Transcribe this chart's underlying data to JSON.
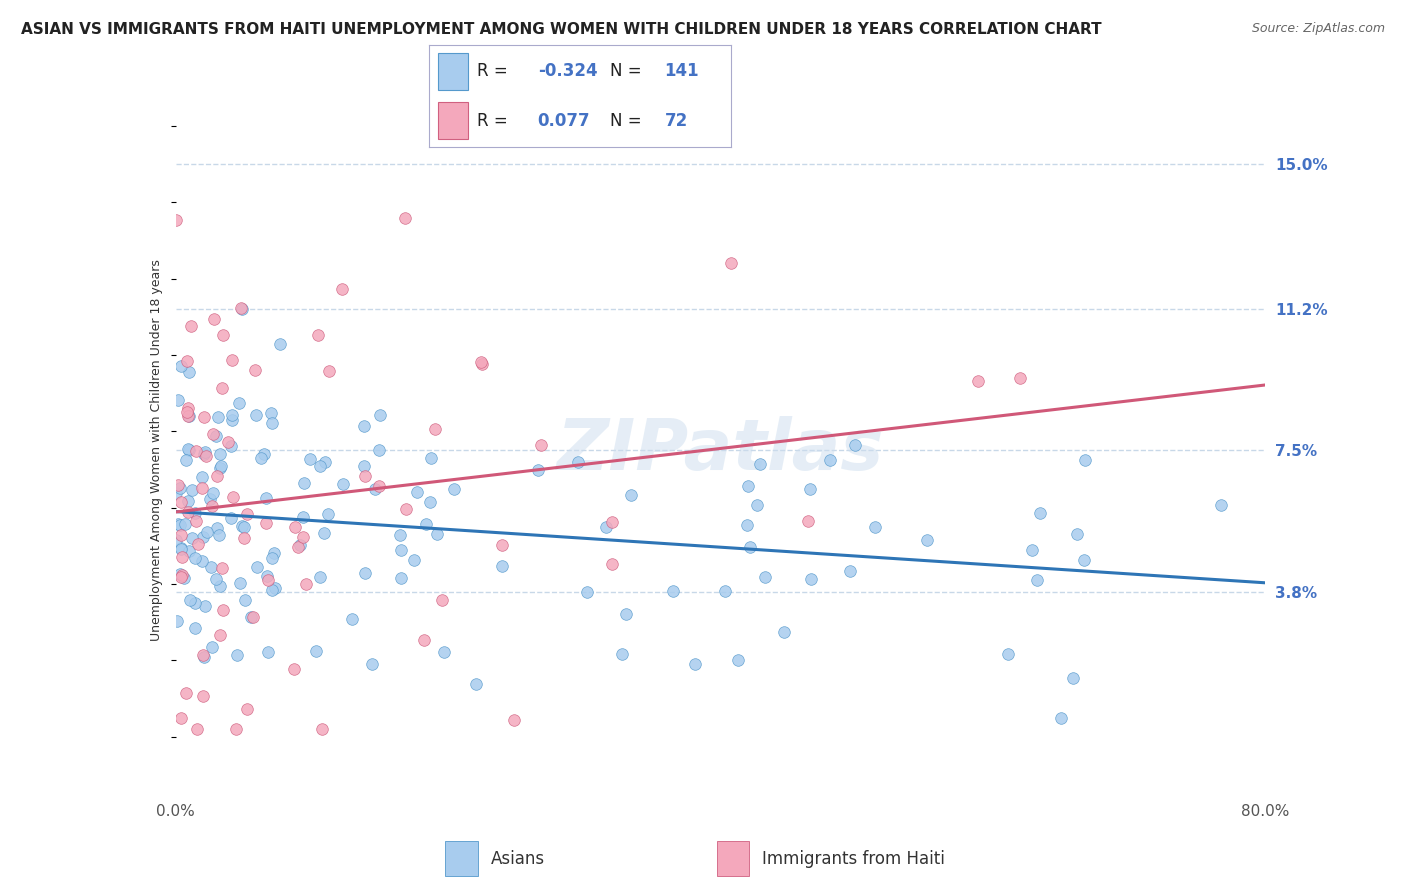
{
  "title": "ASIAN VS IMMIGRANTS FROM HAITI UNEMPLOYMENT AMONG WOMEN WITH CHILDREN UNDER 18 YEARS CORRELATION CHART",
  "source": "Source: ZipAtlas.com",
  "ylabel": "Unemployment Among Women with Children Under 18 years",
  "xmin": 0.0,
  "xmax": 80.0,
  "ymin": -1.5,
  "ymax": 16.5,
  "yticks": [
    3.8,
    7.5,
    11.2,
    15.0
  ],
  "ytick_labels": [
    "3.8%",
    "7.5%",
    "11.2%",
    "15.0%"
  ],
  "xtick_labels": [
    "0.0%",
    "80.0%"
  ],
  "series": [
    {
      "name": "Asians",
      "R": -0.324,
      "N": 141,
      "color": "#a8ccee",
      "edge_color": "#5599cc",
      "line_color": "#2e75b6"
    },
    {
      "name": "Immigrants from Haiti",
      "R": 0.077,
      "N": 72,
      "color": "#f4a8bc",
      "edge_color": "#d06080",
      "line_color": "#d05878"
    }
  ],
  "background_color": "#ffffff",
  "watermark": "ZIPatlas",
  "grid_color": "#c8d8e8",
  "title_fontsize": 11,
  "axis_label_fontsize": 9,
  "tick_label_fontsize": 11,
  "legend_R1": "-0.324",
  "legend_N1": "141",
  "legend_R2": "0.077",
  "legend_N2": "72"
}
